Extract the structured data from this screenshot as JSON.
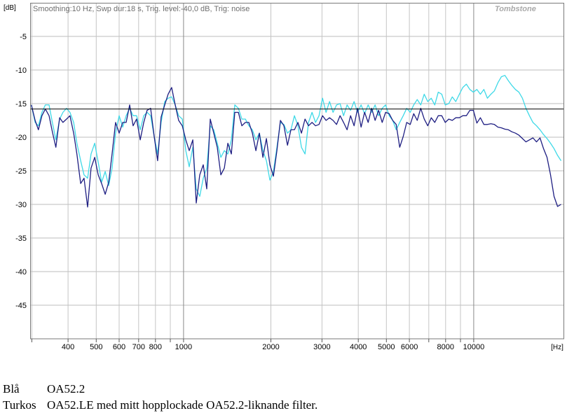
{
  "chart_data": {
    "type": "line",
    "header": "Smoothing:10 Hz, Swp dur:18 s, Trig. level:-40,0 dB, Trig: noise",
    "watermark": "Tombstone",
    "ylabel": "[dB]",
    "xlabel": "[Hz]",
    "xscale": "log",
    "xlim": [
      296,
      20500
    ],
    "ylim": [
      -50,
      0
    ],
    "grid": true,
    "x_ticks": [
      400,
      500,
      600,
      700,
      800,
      1000,
      2000,
      3000,
      4000,
      5000,
      6000,
      8000,
      10000
    ],
    "x_tick_labels": [
      "400",
      "500",
      "600",
      "700",
      "800",
      "1000",
      "2000",
      "3000",
      "4000",
      "5000",
      "6000",
      "8000",
      "10000"
    ],
    "x_grid": [
      300,
      400,
      500,
      600,
      700,
      800,
      900,
      1000,
      2000,
      3000,
      4000,
      5000,
      6000,
      7000,
      8000,
      9000,
      10000
    ],
    "x_major_grid": [
      1000,
      10000
    ],
    "y_ticks": [
      -5,
      -10,
      -15,
      -20,
      -25,
      -30,
      -35,
      -40,
      -45
    ],
    "y_tick_labels": [
      "-5",
      "-10",
      "-15",
      "-20",
      "-25",
      "-30",
      "-35",
      "-40",
      "-45"
    ],
    "reference_level": -15.8,
    "x": [
      299,
      308,
      316,
      325,
      334,
      344,
      353,
      363,
      374,
      384,
      395,
      406,
      418,
      429,
      442,
      454,
      467,
      480,
      494,
      508,
      522,
      537,
      552,
      567,
      583,
      600,
      617,
      634,
      652,
      670,
      689,
      709,
      729,
      749,
      770,
      792,
      814,
      837,
      861,
      885,
      910,
      936,
      962,
      990,
      1018,
      1046,
      1076,
      1106,
      1137,
      1169,
      1202,
      1236,
      1271,
      1307,
      1344,
      1382,
      1421,
      1461,
      1502,
      1545,
      1588,
      1633,
      1679,
      1727,
      1775,
      1825,
      1877,
      1930,
      1984,
      2040,
      2098,
      2157,
      2218,
      2281,
      2345,
      2411,
      2479,
      2549,
      2621,
      2695,
      2771,
      2849,
      2930,
      3012,
      3097,
      3185,
      3275,
      3367,
      3462,
      3560,
      3660,
      3764,
      3870,
      3979,
      4091,
      4207,
      4326,
      4448,
      4573,
      4702,
      4835,
      4971,
      5112,
      5256,
      5404,
      5557,
      5714,
      5875,
      6041,
      6211,
      6386,
      6567,
      6752,
      6943,
      7138,
      7340,
      7547,
      7760,
      7979,
      8204,
      8436,
      8674,
      8919,
      9170,
      9429,
      9695,
      9969,
      10250,
      10540,
      10838,
      11143,
      11458,
      11781,
      12114,
      12456,
      12807,
      13169,
      13540,
      13922,
      14315,
      14719,
      15135,
      15562,
      16001,
      16453,
      16917,
      17394,
      17885,
      18390,
      18909,
      19443,
      19991
    ],
    "series": [
      {
        "name": "OA52.2",
        "color_label": "Blå",
        "color": "#1e1e82",
        "values": [
          -15.2,
          -17.5,
          -18.9,
          -16.8,
          -15.8,
          -16.8,
          -19.2,
          -21.5,
          -17.1,
          -17.8,
          -17.3,
          -16.8,
          -19.4,
          -22.5,
          -26.9,
          -26.1,
          -30.4,
          -24.6,
          -23.0,
          -25.6,
          -26.9,
          -28.5,
          -26.7,
          -22.5,
          -17.8,
          -19.4,
          -17.8,
          -17.8,
          -15.2,
          -18.3,
          -17.3,
          -20.4,
          -17.8,
          -16.0,
          -15.7,
          -19.9,
          -23.5,
          -17.0,
          -15.2,
          -13.6,
          -12.6,
          -15.2,
          -17.5,
          -18.3,
          -20.4,
          -22.0,
          -20.4,
          -29.8,
          -25.6,
          -24.1,
          -27.7,
          -17.3,
          -19.4,
          -21.5,
          -25.6,
          -24.6,
          -20.9,
          -22.5,
          -16.3,
          -16.3,
          -18.3,
          -17.8,
          -17.8,
          -19.4,
          -22.0,
          -19.4,
          -23.0,
          -20.2,
          -24.1,
          -25.8,
          -22.0,
          -17.5,
          -18.3,
          -21.2,
          -18.9,
          -18.9,
          -17.8,
          -19.4,
          -17.3,
          -18.3,
          -17.8,
          -18.3,
          -18.1,
          -16.8,
          -17.5,
          -17.1,
          -17.5,
          -18.1,
          -16.8,
          -17.8,
          -18.9,
          -16.8,
          -18.3,
          -15.7,
          -18.5,
          -16.3,
          -17.8,
          -15.7,
          -17.5,
          -16.0,
          -17.8,
          -16.3,
          -16.5,
          -17.5,
          -18.1,
          -21.5,
          -19.9,
          -17.8,
          -18.1,
          -16.5,
          -17.5,
          -15.7,
          -17.3,
          -18.3,
          -17.1,
          -17.8,
          -16.8,
          -16.8,
          -17.8,
          -17.3,
          -17.5,
          -17.1,
          -17.1,
          -16.8,
          -16.8,
          -16.0,
          -16.0,
          -17.9,
          -17.1,
          -18.1,
          -18.1,
          -18.0,
          -18.1,
          -18.5,
          -18.6,
          -18.8,
          -18.9,
          -19.2,
          -19.4,
          -19.7,
          -20.2,
          -20.7,
          -20.4,
          -20.1,
          -20.7,
          -20.1,
          -21.7,
          -23.0,
          -25.6,
          -28.8,
          -30.3,
          -30.0
        ]
      },
      {
        "name": "OA52.LE med mitt hopplockade OA52.2-liknande filter.",
        "color_label": "Turkos",
        "color": "#3fd9e7",
        "values": [
          -15.2,
          -17.8,
          -18.3,
          -16.3,
          -15.2,
          -15.2,
          -17.8,
          -20.4,
          -17.3,
          -16.3,
          -15.7,
          -16.3,
          -17.8,
          -20.9,
          -23.5,
          -25.6,
          -26.1,
          -22.5,
          -20.9,
          -23.7,
          -26.7,
          -25.1,
          -27.2,
          -24.6,
          -19.4,
          -16.8,
          -18.5,
          -16.8,
          -15.7,
          -16.8,
          -16.8,
          -18.9,
          -16.8,
          -16.3,
          -16.8,
          -19.9,
          -22.5,
          -17.8,
          -14.7,
          -14.2,
          -14.0,
          -15.2,
          -16.8,
          -17.3,
          -22.0,
          -24.4,
          -21.5,
          -27.7,
          -28.8,
          -26.1,
          -24.6,
          -18.3,
          -18.9,
          -20.9,
          -23.0,
          -22.0,
          -22.5,
          -20.4,
          -15.2,
          -15.7,
          -17.3,
          -17.3,
          -18.3,
          -18.9,
          -20.4,
          -19.4,
          -22.0,
          -23.5,
          -26.4,
          -25.1,
          -21.5,
          -17.8,
          -18.1,
          -19.4,
          -18.9,
          -16.8,
          -18.3,
          -21.5,
          -22.5,
          -17.8,
          -16.3,
          -17.8,
          -16.8,
          -14.2,
          -16.3,
          -14.7,
          -16.3,
          -15.2,
          -15.0,
          -16.8,
          -15.2,
          -16.0,
          -14.7,
          -16.3,
          -15.2,
          -16.5,
          -15.2,
          -16.3,
          -15.2,
          -16.8,
          -15.7,
          -15.2,
          -16.8,
          -17.5,
          -18.9,
          -17.8,
          -16.8,
          -15.7,
          -16.3,
          -15.2,
          -14.4,
          -15.2,
          -13.6,
          -14.7,
          -14.2,
          -15.2,
          -13.3,
          -13.6,
          -15.2,
          -15.0,
          -14.0,
          -14.7,
          -13.6,
          -12.6,
          -12.1,
          -12.9,
          -13.3,
          -12.9,
          -13.6,
          -12.9,
          -14.2,
          -13.6,
          -13.1,
          -11.9,
          -11.0,
          -10.8,
          -11.6,
          -12.3,
          -12.9,
          -13.3,
          -14.2,
          -15.7,
          -16.8,
          -17.8,
          -18.3,
          -18.9,
          -19.6,
          -20.2,
          -20.9,
          -21.7,
          -22.7,
          -23.5
        ]
      }
    ]
  }
}
